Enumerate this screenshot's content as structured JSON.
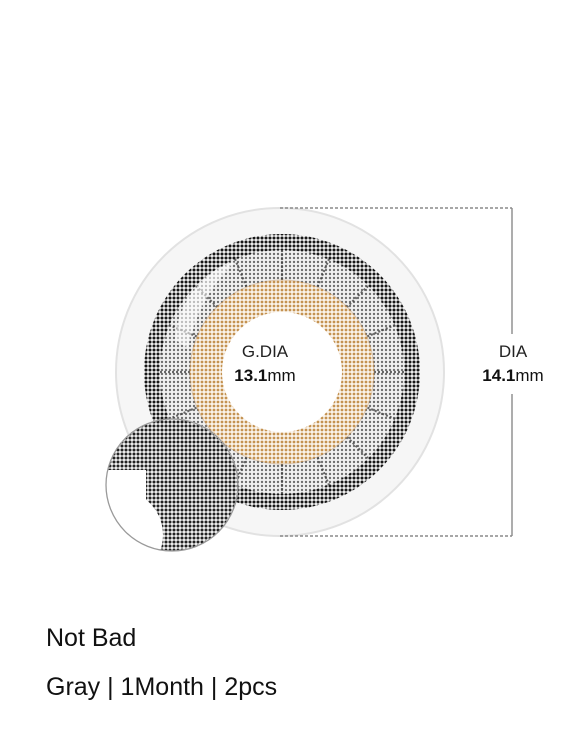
{
  "lens": {
    "gdia_label": "G.DIA",
    "gdia_value": "13.1",
    "gdia_unit": "mm",
    "dia_label": "DIA",
    "dia_value": "14.1",
    "dia_unit": "mm",
    "colors": {
      "outer_ring": "#1a1a1a",
      "mid_gray": "#8a8a8a",
      "inner_ring": "#c49459",
      "pupil": "#ffffff",
      "dimension_line": "#888888"
    }
  },
  "product": {
    "name": "Not Bad",
    "specs": "Gray | 1Month | 2pcs"
  }
}
